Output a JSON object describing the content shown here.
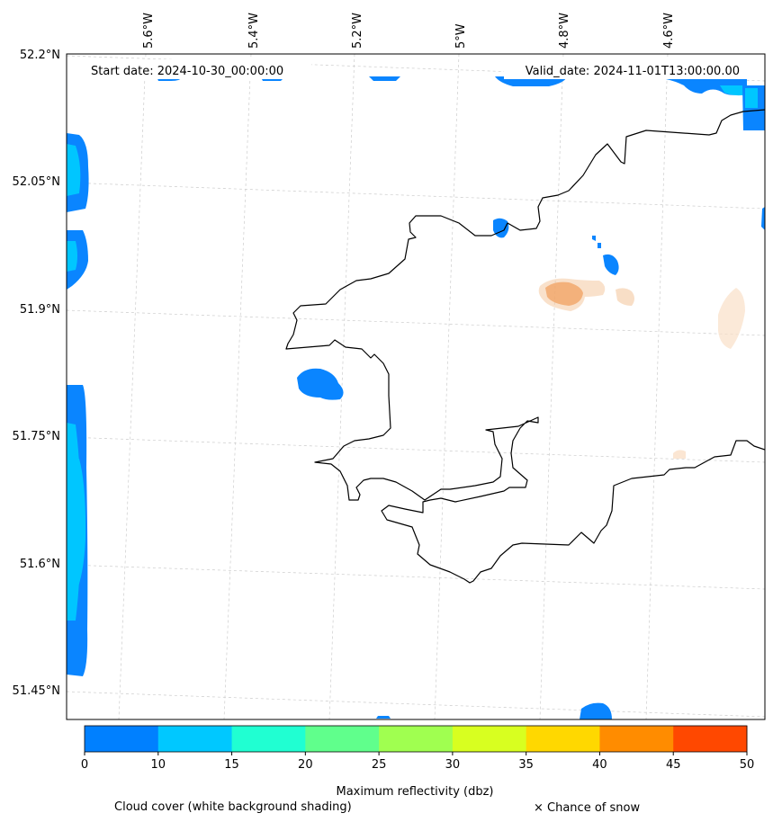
{
  "start_date": "Start date: 2024-10-30_00:00:00",
  "valid_date": "Valid_date: 2024-11-01T13:00:00.00",
  "lon_labels": [
    "5.6°W",
    "5.4°W",
    "5.2°W",
    "5°W",
    "4.8°W",
    "4.6°W"
  ],
  "lat_labels": [
    "52.2°N",
    "52.05°N",
    "51.9°N",
    "51.75°N",
    "51.6°N",
    "51.45°N"
  ],
  "colorbar": {
    "ticks": [
      "0",
      "10",
      "15",
      "20",
      "25",
      "30",
      "35",
      "40",
      "45",
      "50"
    ],
    "colors": [
      "#0080ff",
      "#00c8ff",
      "#20ffd2",
      "#60ff8c",
      "#a0ff50",
      "#d8ff20",
      "#ffd800",
      "#ff8c00",
      "#ff4800"
    ],
    "label": "Maximum reflectivity (dbz)"
  },
  "legend": {
    "cloud_cover": "Cloud cover (white background shading)",
    "snow": "× Chance of snow"
  },
  "colors": {
    "reflectivity_low": "#0a85ff",
    "reflectivity_mid": "#00c6ff",
    "precip_shade": "#f0a060",
    "coastline": "#000000",
    "grid": "#cccccc"
  }
}
